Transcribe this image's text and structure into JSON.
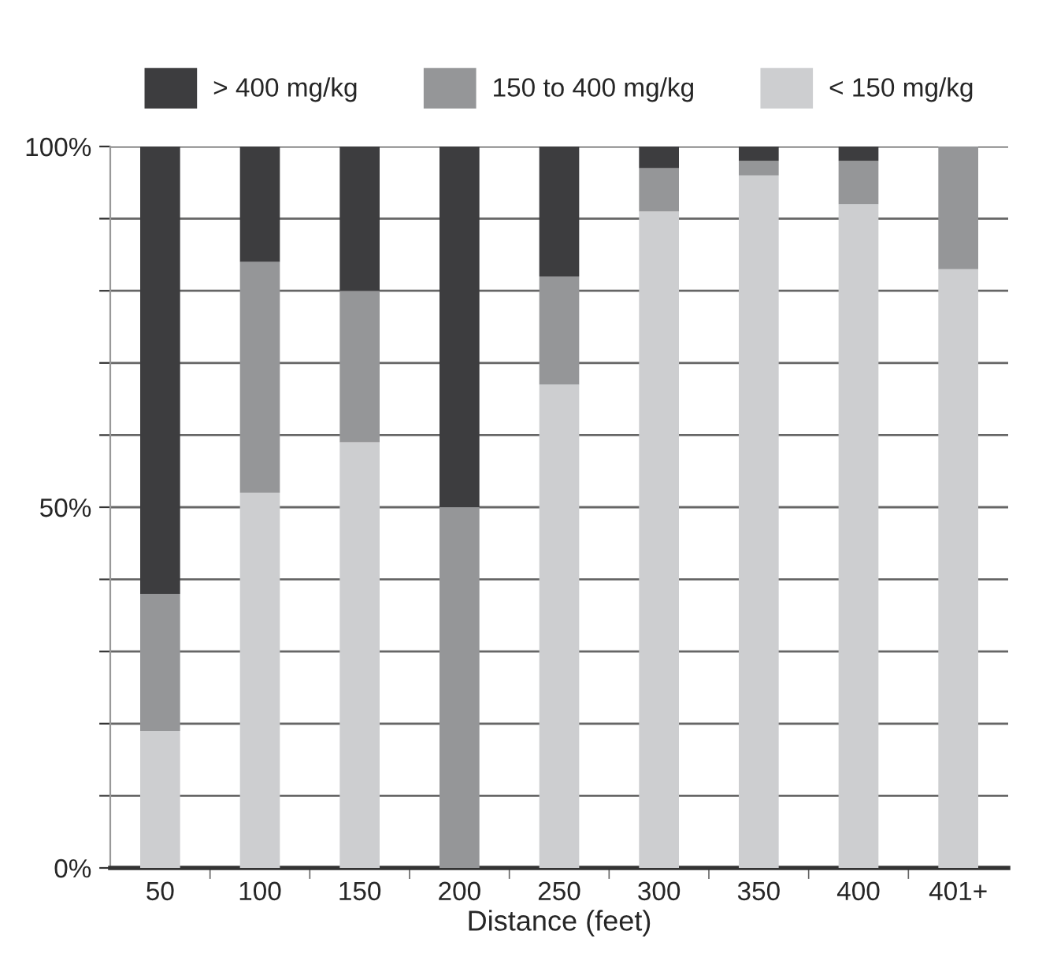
{
  "chart_data": {
    "type": "bar",
    "stacked": true,
    "xlabel": "Distance (feet)",
    "categories": [
      "50",
      "100",
      "150",
      "200",
      "250",
      "300",
      "350",
      "400",
      "401+"
    ],
    "series": [
      {
        "name": "< 150 mg/kg",
        "color": "#cdced0",
        "values": [
          19,
          52,
          59,
          0,
          67,
          91,
          96,
          92,
          83
        ]
      },
      {
        "name": "150 to 400 mg/kg",
        "color": "#959698",
        "values": [
          19,
          32,
          21,
          50,
          15,
          6,
          2,
          6,
          17
        ]
      },
      {
        "name": "> 400 mg/kg",
        "color": "#3d3d3f",
        "values": [
          62,
          16,
          20,
          50,
          18,
          3,
          2,
          2,
          0
        ]
      }
    ],
    "ylim": [
      0,
      100
    ],
    "yticks": [
      {
        "value": 0,
        "label": "0%"
      },
      {
        "value": 10,
        "label": null
      },
      {
        "value": 20,
        "label": null
      },
      {
        "value": 30,
        "label": null
      },
      {
        "value": 40,
        "label": null
      },
      {
        "value": 50,
        "label": "50%"
      },
      {
        "value": 60,
        "label": null
      },
      {
        "value": 70,
        "label": null
      },
      {
        "value": 80,
        "label": null
      },
      {
        "value": 90,
        "label": null
      },
      {
        "value": 100,
        "label": "100%"
      }
    ],
    "grid": "y",
    "legend": "top"
  }
}
